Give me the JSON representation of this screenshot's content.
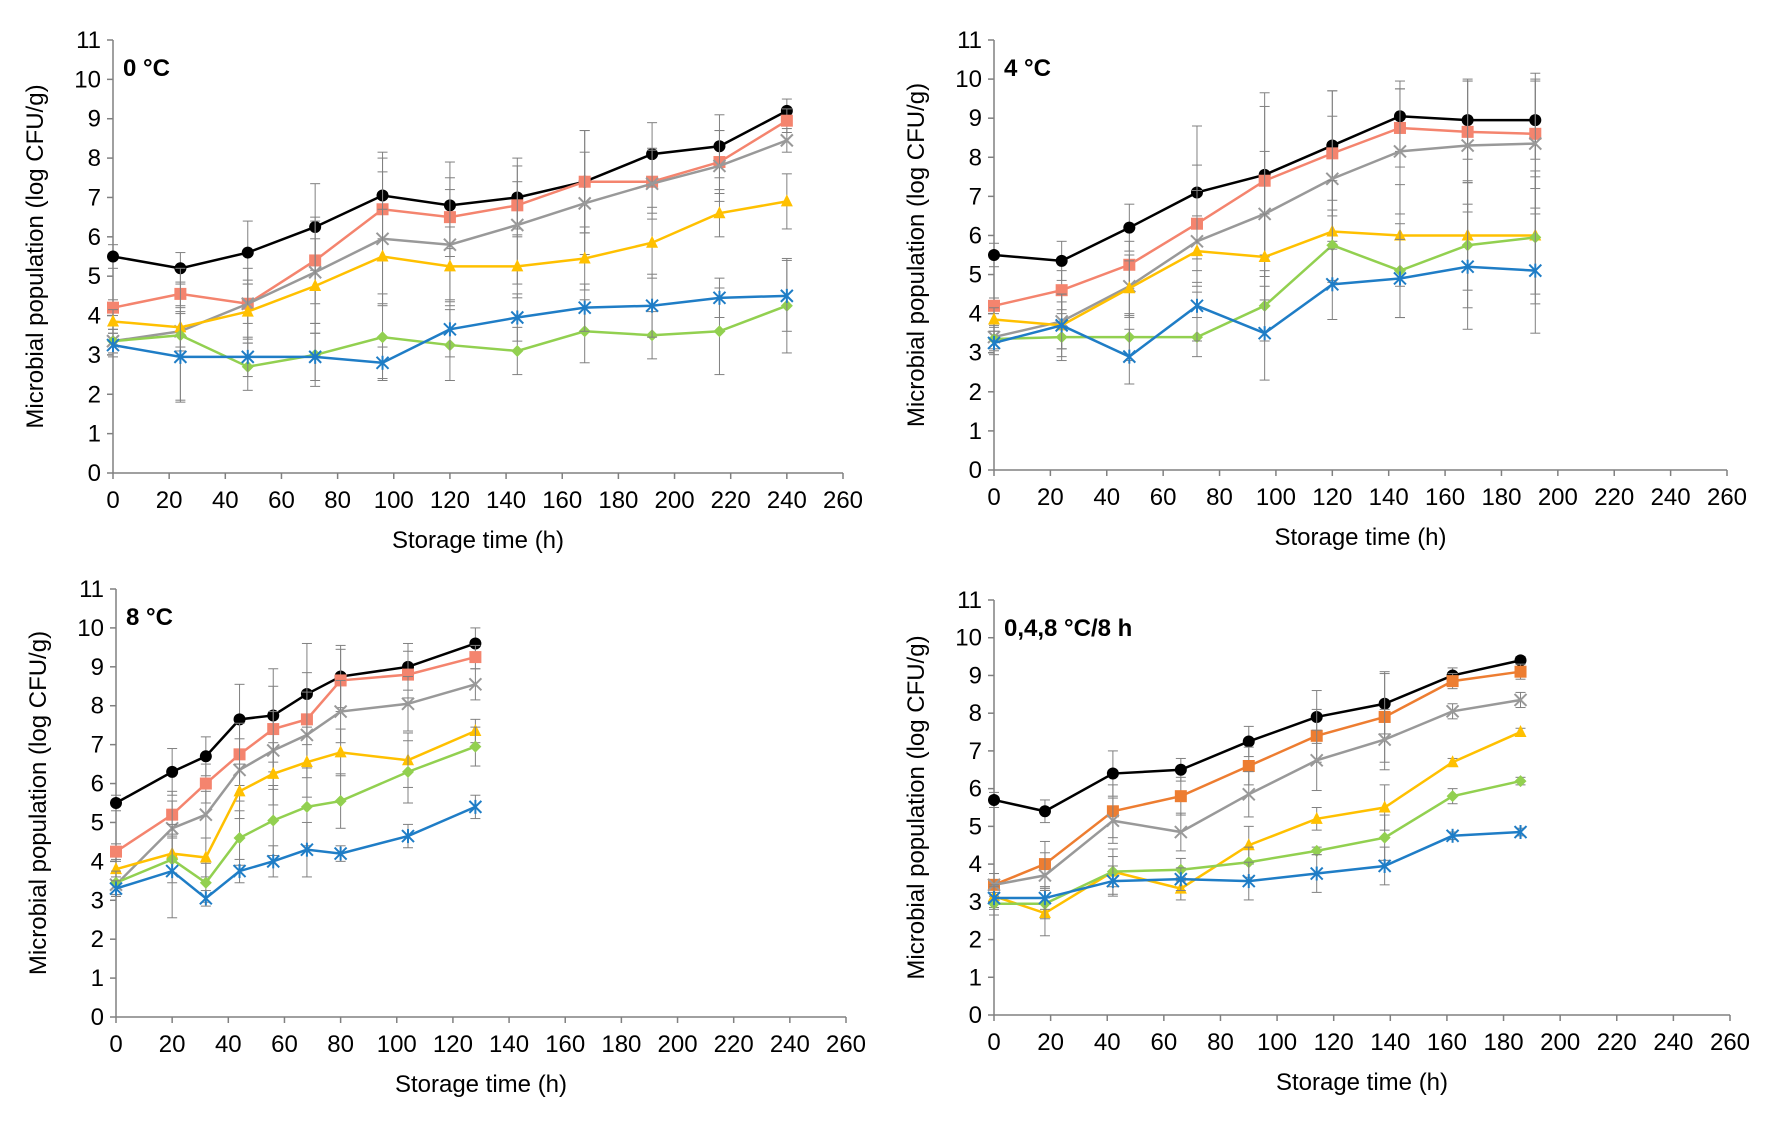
{
  "chart_data": [
    {
      "type": "line",
      "title": "0 °C",
      "xlabel": "Storage time (h)",
      "ylabel": "Microbial population (log CFU/g)",
      "xlim": [
        0,
        260
      ],
      "ylim": [
        0,
        11
      ],
      "xticks": [
        0,
        20,
        40,
        60,
        80,
        100,
        120,
        140,
        160,
        180,
        200,
        220,
        240,
        260
      ],
      "yticks": [
        0,
        1,
        2,
        3,
        4,
        5,
        6,
        7,
        8,
        9,
        10,
        11
      ],
      "series": [
        {
          "marker": "circle",
          "color": "#000000",
          "x": [
            0,
            24,
            48,
            72,
            96,
            120,
            144,
            168,
            192,
            216,
            240
          ],
          "y": [
            5.5,
            5.2,
            5.6,
            6.25,
            7.05,
            6.8,
            7.0,
            7.4,
            8.1,
            8.3,
            9.2
          ],
          "err": [
            0.3,
            0.4,
            0.8,
            1.1,
            1.1,
            1.1,
            1.0,
            1.3,
            0.8,
            0.8,
            0.3
          ]
        },
        {
          "marker": "square",
          "color": "#F4846E",
          "x": [
            0,
            24,
            48,
            72,
            96,
            120,
            144,
            168,
            192,
            216,
            240
          ],
          "y": [
            4.2,
            4.55,
            4.3,
            5.4,
            6.7,
            6.5,
            6.8,
            7.4,
            7.4,
            7.9,
            8.95
          ],
          "err": [
            0.2,
            0.3,
            0.5,
            1.1,
            1.3,
            1.0,
            0.6,
            1.3,
            0.8,
            0.8,
            0.3
          ]
        },
        {
          "marker": "x",
          "color": "#999999",
          "x": [
            0,
            24,
            48,
            72,
            96,
            120,
            144,
            168,
            192,
            216,
            240
          ],
          "y": [
            3.35,
            3.6,
            4.3,
            5.1,
            5.95,
            5.8,
            6.3,
            6.85,
            7.35,
            7.8,
            8.45
          ],
          "err": [
            0.3,
            0.5,
            0.9,
            1.3,
            1.7,
            1.4,
            1.5,
            1.3,
            0.9,
            0.9,
            0.3
          ]
        },
        {
          "marker": "triangle",
          "color": "#FFC000",
          "x": [
            0,
            24,
            48,
            72,
            96,
            120,
            144,
            168,
            192,
            216,
            240
          ],
          "y": [
            3.85,
            3.7,
            4.1,
            4.75,
            5.5,
            5.25,
            5.25,
            5.45,
            5.85,
            6.6,
            6.9
          ],
          "err": [
            0.3,
            0.5,
            0.8,
            1.2,
            1.2,
            1.0,
            0.8,
            0.8,
            0.9,
            0.6,
            0.7
          ]
        },
        {
          "marker": "diamond",
          "color": "#92D050",
          "x": [
            0,
            24,
            48,
            72,
            96,
            120,
            144,
            168,
            192,
            216,
            240
          ],
          "y": [
            3.35,
            3.5,
            2.7,
            3.0,
            3.45,
            3.25,
            3.1,
            3.6,
            3.5,
            3.6,
            4.25
          ],
          "err": [
            0.3,
            1.7,
            0.6,
            0.8,
            1.1,
            0.9,
            0.6,
            0.8,
            0.6,
            1.1,
            1.2
          ]
        },
        {
          "marker": "asterisk",
          "color": "#1F7DC6",
          "x": [
            0,
            24,
            48,
            72,
            96,
            120,
            144,
            168,
            192,
            216,
            240
          ],
          "y": [
            3.25,
            2.95,
            2.95,
            2.95,
            2.8,
            3.65,
            3.95,
            4.2,
            4.25,
            4.45,
            4.5
          ],
          "err": [
            0.3,
            1.1,
            0.5,
            0.6,
            0.4,
            0.7,
            0.6,
            0.6,
            0.8,
            0.5,
            0.9
          ]
        }
      ]
    },
    {
      "type": "line",
      "title": "4 °C",
      "xlabel": "Storage time (h)",
      "ylabel": "Microbial population (log CFU/g)",
      "xlim": [
        0,
        260
      ],
      "ylim": [
        0,
        11
      ],
      "xticks": [
        0,
        20,
        40,
        60,
        80,
        100,
        120,
        140,
        160,
        180,
        200,
        220,
        240,
        260
      ],
      "yticks": [
        0,
        1,
        2,
        3,
        4,
        5,
        6,
        7,
        8,
        9,
        10,
        11
      ],
      "series": [
        {
          "marker": "circle",
          "color": "#000000",
          "x": [
            0,
            24,
            48,
            72,
            96,
            120,
            144,
            168,
            192
          ],
          "y": [
            5.5,
            5.35,
            6.2,
            7.1,
            7.55,
            8.3,
            9.05,
            8.95,
            8.95
          ],
          "err": [
            0.3,
            0.5,
            0.6,
            1.7,
            2.1,
            1.4,
            0.9,
            1.0,
            1.0
          ]
        },
        {
          "marker": "square",
          "color": "#F4846E",
          "x": [
            0,
            24,
            48,
            72,
            96,
            120,
            144,
            168,
            192
          ],
          "y": [
            4.2,
            4.6,
            5.25,
            6.3,
            7.4,
            8.1,
            8.75,
            8.65,
            8.6
          ],
          "err": [
            0.2,
            0.5,
            0.6,
            1.5,
            1.9,
            1.6,
            1.0,
            1.3,
            1.4
          ]
        },
        {
          "marker": "x",
          "color": "#999999",
          "x": [
            0,
            24,
            48,
            72,
            96,
            120,
            144,
            168,
            192
          ],
          "y": [
            3.4,
            3.8,
            4.7,
            5.85,
            6.55,
            7.45,
            8.15,
            8.3,
            8.35
          ],
          "err": [
            0.3,
            0.7,
            0.8,
            1.3,
            1.6,
            1.6,
            1.6,
            1.7,
            1.8
          ]
        },
        {
          "marker": "triangle",
          "color": "#FFC000",
          "x": [
            0,
            24,
            48,
            72,
            96,
            120,
            144,
            168,
            192
          ],
          "y": [
            3.85,
            3.7,
            4.65,
            5.6,
            5.45,
            6.1,
            6.0,
            6.0,
            6.0
          ],
          "err": [
            0.3,
            0.6,
            0.7,
            0.9,
            1.1,
            1.3,
            1.3,
            1.4,
            1.5
          ]
        },
        {
          "marker": "diamond",
          "color": "#92D050",
          "x": [
            0,
            24,
            48,
            72,
            96,
            120,
            144,
            168,
            192
          ],
          "y": [
            3.35,
            3.4,
            3.4,
            3.4,
            4.2,
            5.75,
            5.1,
            5.75,
            5.95
          ],
          "err": [
            0.3,
            0.6,
            0.6,
            0.5,
            0.9,
            0.9,
            1.2,
            1.6,
            1.7
          ]
        },
        {
          "marker": "asterisk",
          "color": "#1F7DC6",
          "x": [
            0,
            24,
            48,
            72,
            96,
            120,
            144,
            168,
            192
          ],
          "y": [
            3.25,
            3.7,
            2.9,
            4.2,
            3.5,
            4.75,
            4.9,
            5.2,
            5.1
          ],
          "err": [
            0.3,
            0.8,
            0.7,
            0.9,
            1.2,
            0.9,
            1.0,
            1.6,
            1.6
          ]
        }
      ]
    },
    {
      "type": "line",
      "title": "8 °C",
      "xlabel": "Storage time (h)",
      "ylabel": "Microbial population (log CFU/g)",
      "xlim": [
        0,
        260
      ],
      "ylim": [
        0,
        11
      ],
      "xticks": [
        0,
        20,
        40,
        60,
        80,
        100,
        120,
        140,
        160,
        180,
        200,
        220,
        240,
        260
      ],
      "yticks": [
        0,
        1,
        2,
        3,
        4,
        5,
        6,
        7,
        8,
        9,
        10,
        11
      ],
      "series": [
        {
          "marker": "circle",
          "color": "#000000",
          "x": [
            0,
            20,
            32,
            44,
            56,
            68,
            80,
            104,
            128
          ],
          "y": [
            5.5,
            6.3,
            6.7,
            7.65,
            7.75,
            8.3,
            8.75,
            9.0,
            9.6
          ],
          "err": [
            0.2,
            0.6,
            0.5,
            0.9,
            1.2,
            1.3,
            0.8,
            0.6,
            0.4
          ]
        },
        {
          "marker": "square",
          "color": "#F4846E",
          "x": [
            0,
            20,
            32,
            44,
            56,
            68,
            80,
            104,
            128
          ],
          "y": [
            4.25,
            5.2,
            6.0,
            6.75,
            7.4,
            7.65,
            8.65,
            8.8,
            9.25
          ],
          "err": [
            0.2,
            0.6,
            0.5,
            0.8,
            1.1,
            1.2,
            0.8,
            0.6,
            0.3
          ]
        },
        {
          "marker": "x",
          "color": "#999999",
          "x": [
            0,
            20,
            32,
            44,
            56,
            68,
            80,
            104,
            128
          ],
          "y": [
            3.4,
            4.85,
            5.2,
            6.35,
            6.85,
            7.25,
            7.85,
            8.05,
            8.55
          ],
          "err": [
            0.3,
            0.7,
            0.6,
            0.8,
            1.0,
            1.1,
            0.8,
            0.7,
            0.4
          ]
        },
        {
          "marker": "triangle",
          "color": "#FFC000",
          "x": [
            0,
            20,
            32,
            44,
            56,
            68,
            80,
            104,
            128
          ],
          "y": [
            3.8,
            4.2,
            4.1,
            5.8,
            6.25,
            6.55,
            6.8,
            6.6,
            7.35
          ],
          "err": [
            0.2,
            0.5,
            0.5,
            0.7,
            0.8,
            0.9,
            0.6,
            0.7,
            0.3
          ]
        },
        {
          "marker": "diamond",
          "color": "#92D050",
          "x": [
            0,
            20,
            32,
            44,
            56,
            68,
            80,
            104,
            128
          ],
          "y": [
            3.45,
            4.05,
            3.45,
            4.6,
            5.05,
            5.4,
            5.55,
            6.3,
            6.95
          ],
          "err": [
            0.3,
            0.6,
            0.5,
            0.7,
            0.9,
            1.0,
            0.7,
            0.8,
            0.5
          ]
        },
        {
          "marker": "asterisk",
          "color": "#1F7DC6",
          "x": [
            0,
            20,
            32,
            44,
            56,
            68,
            80,
            104,
            128
          ],
          "y": [
            3.3,
            3.75,
            3.05,
            3.75,
            4.0,
            4.3,
            4.2,
            4.65,
            5.4
          ],
          "err": [
            0.2,
            1.2,
            0.2,
            0.3,
            0.4,
            0.7,
            0.2,
            0.3,
            0.3
          ]
        }
      ]
    },
    {
      "type": "line",
      "title": "0,4,8 °C/8 h",
      "xlabel": "Storage time (h)",
      "ylabel": "Microbial population (log CFU/g)",
      "xlim": [
        0,
        260
      ],
      "ylim": [
        0,
        11
      ],
      "xticks": [
        0,
        20,
        40,
        60,
        80,
        100,
        120,
        140,
        160,
        180,
        200,
        220,
        240,
        260
      ],
      "yticks": [
        0,
        1,
        2,
        3,
        4,
        5,
        6,
        7,
        8,
        9,
        10,
        11
      ],
      "series": [
        {
          "marker": "circle",
          "color": "#000000",
          "x": [
            0,
            18,
            42,
            66,
            90,
            114,
            138,
            162,
            186
          ],
          "y": [
            5.7,
            5.4,
            6.4,
            6.5,
            7.25,
            7.9,
            8.25,
            9.0,
            9.4
          ],
          "err": [
            0.2,
            0.3,
            0.6,
            0.3,
            0.4,
            0.7,
            0.8,
            0.2,
            0.1
          ]
        },
        {
          "marker": "square",
          "color": "#ED7D31",
          "x": [
            0,
            18,
            42,
            66,
            90,
            114,
            138,
            162,
            186
          ],
          "y": [
            3.45,
            4.0,
            5.4,
            5.8,
            6.6,
            7.4,
            7.9,
            8.85,
            9.1
          ],
          "err": [
            0.3,
            0.6,
            0.7,
            0.5,
            0.5,
            0.7,
            1.2,
            0.2,
            0.2
          ]
        },
        {
          "marker": "x",
          "color": "#999999",
          "x": [
            0,
            18,
            42,
            66,
            90,
            114,
            138,
            162,
            186
          ],
          "y": [
            3.45,
            3.7,
            5.15,
            4.85,
            5.85,
            6.75,
            7.3,
            8.05,
            8.35
          ],
          "err": [
            0.3,
            0.6,
            0.6,
            0.5,
            0.6,
            0.8,
            0.8,
            0.2,
            0.2
          ]
        },
        {
          "marker": "triangle",
          "color": "#FFC000",
          "x": [
            0,
            18,
            42,
            66,
            90,
            114,
            138,
            162,
            186
          ],
          "y": [
            3.15,
            2.7,
            3.8,
            3.35,
            4.5,
            5.2,
            5.5,
            6.7,
            7.5
          ],
          "err": [
            0.3,
            0.6,
            0.6,
            0.3,
            0.5,
            0.3,
            0.6,
            0.1,
            0.1
          ]
        },
        {
          "marker": "diamond",
          "color": "#92D050",
          "x": [
            0,
            18,
            42,
            66,
            90,
            114,
            138,
            162,
            186
          ],
          "y": [
            2.95,
            2.95,
            3.8,
            3.85,
            4.05,
            4.35,
            4.7,
            5.8,
            6.2
          ],
          "err": [
            0.3,
            0.4,
            0.4,
            0.3,
            0.4,
            0.1,
            0.6,
            0.2,
            0.1
          ]
        },
        {
          "marker": "asterisk",
          "color": "#1F7DC6",
          "x": [
            0,
            18,
            42,
            66,
            90,
            114,
            138,
            162,
            186
          ],
          "y": [
            3.1,
            3.1,
            3.55,
            3.6,
            3.55,
            3.75,
            3.95,
            4.75,
            4.85
          ],
          "err": [
            0.3,
            0.3,
            0.4,
            0.3,
            0.5,
            0.5,
            0.5,
            0.1,
            0.1
          ]
        }
      ]
    }
  ]
}
